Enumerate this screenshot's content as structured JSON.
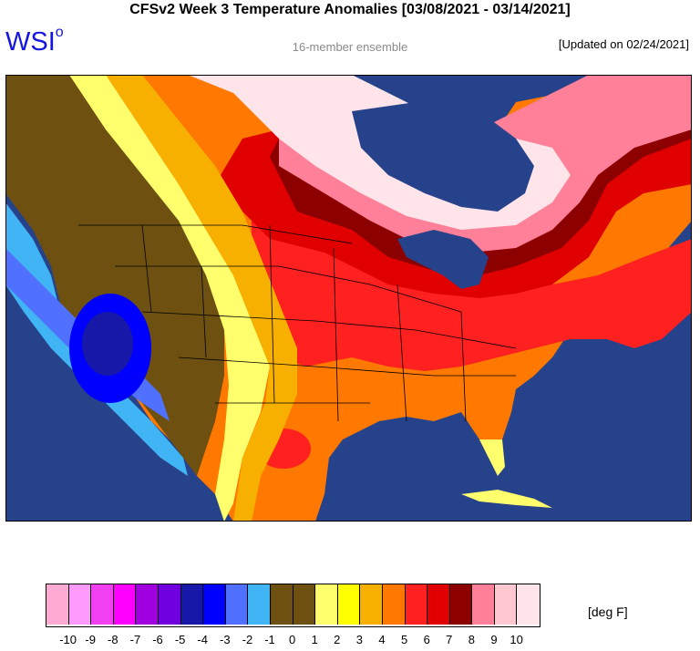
{
  "title": "CFSv2 Week 3 Temperature Anomalies [03/08/2021 - 03/14/2021]",
  "logo": {
    "text": "WSI",
    "mark": "o"
  },
  "subtitle": "16-member ensemble",
  "updated": "[Updated on 02/24/2021]",
  "legend": {
    "unit": "[deg F]",
    "ticks": [
      "-10",
      "-9",
      "-8",
      "-7",
      "-6",
      "-5",
      "-4",
      "-3",
      "-2",
      "-1",
      "0",
      "1",
      "2",
      "3",
      "4",
      "5",
      "6",
      "7",
      "8",
      "9",
      "10"
    ],
    "colors": [
      "#ffaad2",
      "#ff9bff",
      "#f040f0",
      "#ff00ff",
      "#a000e0",
      "#7000e0",
      "#1818a8",
      "#0000ff",
      "#5070ff",
      "#40b4f4",
      "#6e5010",
      "#6e5010",
      "#ffff6e",
      "#ffff00",
      "#f8b000",
      "#ff7800",
      "#ff2020",
      "#e00000",
      "#8c0000",
      "#ff8098",
      "#ffc8d0",
      "#ffe4ea"
    ]
  },
  "colors": {
    "ocean": "#26428a",
    "outline": "#000000"
  }
}
